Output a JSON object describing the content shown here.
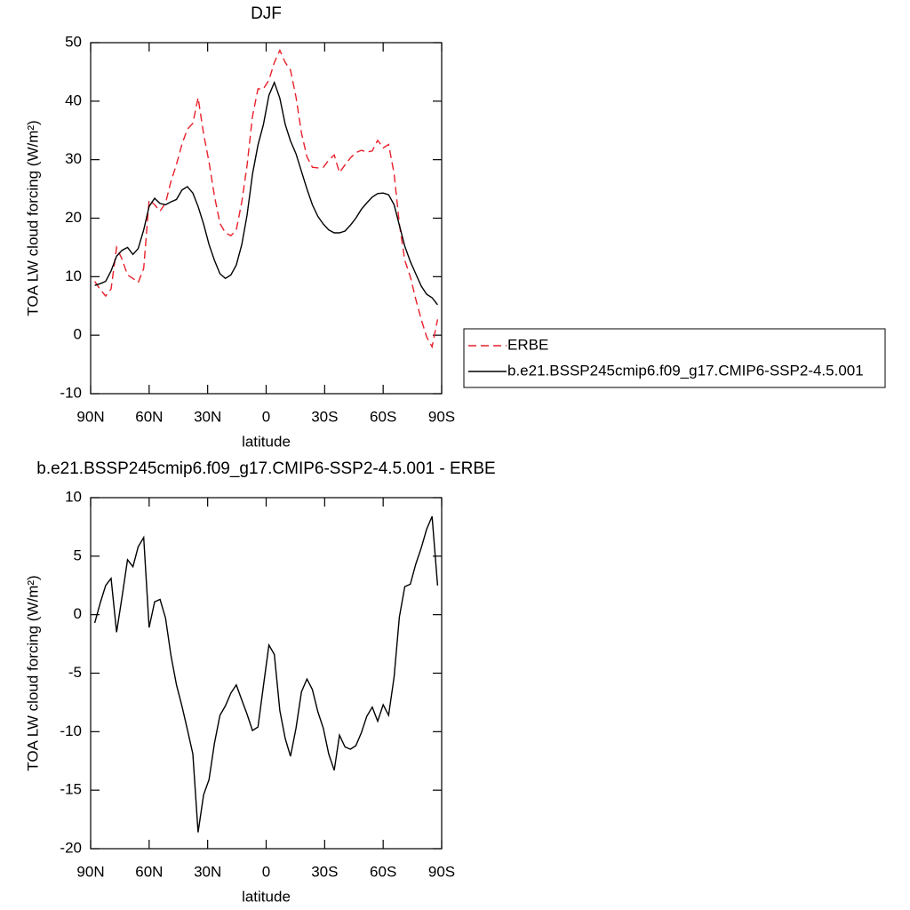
{
  "chart_data": [
    {
      "type": "line",
      "title": "DJF",
      "xlabel": "latitude",
      "ylabel": "TOA LW cloud forcing (W/m²)",
      "x": [
        87.9,
        85.1,
        82.3,
        79.5,
        76.7,
        73.9,
        71.1,
        68.3,
        65.6,
        62.8,
        60.0,
        57.2,
        54.4,
        51.6,
        48.8,
        46.0,
        43.2,
        40.4,
        37.6,
        34.9,
        32.1,
        29.3,
        26.5,
        23.7,
        20.9,
        18.1,
        15.3,
        12.5,
        9.8,
        7.0,
        4.2,
        1.4,
        -1.4,
        -4.2,
        -7.0,
        -9.8,
        -12.5,
        -15.3,
        -18.1,
        -20.9,
        -23.7,
        -26.5,
        -29.3,
        -32.1,
        -34.9,
        -37.6,
        -40.4,
        -43.2,
        -46.0,
        -48.8,
        -51.6,
        -54.4,
        -57.2,
        -60.0,
        -62.8,
        -65.6,
        -68.3,
        -71.1,
        -73.9,
        -76.7,
        -79.5,
        -82.3,
        -85.1,
        -87.9
      ],
      "series": [
        {
          "name": "ERBE",
          "color": "#e8202a",
          "linestyle": "dashed",
          "values": [
            9.2,
            7.8,
            6.7,
            7.9,
            15.0,
            13.0,
            10.3,
            9.7,
            9.0,
            11.4,
            23.1,
            22.3,
            21.2,
            22.6,
            26.3,
            29.2,
            32.6,
            35.2,
            36.2,
            40.6,
            34.4,
            29.6,
            23.8,
            19.1,
            17.5,
            17.0,
            18.0,
            22.8,
            29.0,
            37.4,
            42.1,
            42.1,
            43.6,
            46.6,
            48.7,
            46.6,
            45.3,
            40.7,
            34.6,
            30.5,
            28.7,
            28.6,
            28.7,
            29.9,
            30.8,
            27.8,
            29.1,
            30.3,
            31.2,
            31.6,
            31.3,
            31.5,
            33.3,
            32.0,
            32.6,
            27.6,
            19.0,
            12.8,
            10.0,
            6.2,
            2.7,
            -0.3,
            -2.0,
            2.7
          ]
        },
        {
          "name": "b.e21.BSSP245cmip6.f09_g17.CMIP6-SSP2-4.5.001",
          "color": "#000000",
          "linestyle": "solid",
          "values": [
            8.5,
            8.8,
            9.2,
            11.0,
            13.5,
            14.5,
            15.0,
            13.8,
            14.8,
            18.0,
            22.0,
            23.4,
            22.5,
            22.3,
            22.8,
            23.2,
            24.8,
            25.4,
            24.3,
            22.0,
            19.0,
            15.5,
            12.8,
            10.5,
            9.7,
            10.3,
            12.0,
            15.5,
            20.5,
            27.5,
            32.5,
            36.0,
            41.0,
            43.2,
            40.5,
            36.0,
            33.2,
            31.0,
            28.0,
            25.0,
            22.3,
            20.3,
            19.0,
            18.0,
            17.5,
            17.5,
            17.8,
            18.8,
            20.0,
            21.5,
            22.6,
            23.6,
            24.2,
            24.3,
            24.0,
            22.3,
            18.8,
            15.2,
            12.6,
            10.5,
            8.4,
            7.0,
            6.4,
            5.2
          ]
        }
      ],
      "xlim": [
        90,
        -90
      ],
      "xticks": [
        {
          "value": 90,
          "label": "90N"
        },
        {
          "value": 60,
          "label": "60N"
        },
        {
          "value": 30,
          "label": "30N"
        },
        0,
        {
          "value": -30,
          "label": "30S"
        },
        {
          "value": -60,
          "label": "60S"
        },
        {
          "value": -90,
          "label": "90S"
        }
      ],
      "ylim": [
        -10,
        50
      ],
      "yticks": [
        -10,
        0,
        10,
        20,
        30,
        40,
        50
      ],
      "legend_position": "right"
    },
    {
      "type": "line",
      "title": "b.e21.BSSP245cmip6.f09_g17.CMIP6-SSP2-4.5.001 - ERBE",
      "xlabel": "latitude",
      "ylabel": "TOA LW cloud forcing (W/m²)",
      "x": [
        87.9,
        85.1,
        82.3,
        79.5,
        76.7,
        73.9,
        71.1,
        68.3,
        65.6,
        62.8,
        60.0,
        57.2,
        54.4,
        51.6,
        48.8,
        46.0,
        43.2,
        40.4,
        37.6,
        34.9,
        32.1,
        29.3,
        26.5,
        23.7,
        20.9,
        18.1,
        15.3,
        12.5,
        9.8,
        7.0,
        4.2,
        1.4,
        -1.4,
        -4.2,
        -7.0,
        -9.8,
        -12.5,
        -15.3,
        -18.1,
        -20.9,
        -23.7,
        -26.5,
        -29.3,
        -32.1,
        -34.9,
        -37.6,
        -40.4,
        -43.2,
        -46.0,
        -48.8,
        -51.6,
        -54.4,
        -57.2,
        -60.0,
        -62.8,
        -65.6,
        -68.3,
        -71.1,
        -73.9,
        -76.7,
        -79.5,
        -82.3,
        -85.1,
        -87.9
      ],
      "color": "#000000",
      "values": [
        -0.7,
        1.0,
        2.5,
        3.1,
        -1.5,
        1.5,
        4.7,
        4.1,
        5.8,
        6.6,
        -1.1,
        1.1,
        1.3,
        -0.3,
        -3.5,
        -6,
        -7.8,
        -9.8,
        -11.9,
        -18.6,
        -15.4,
        -14.1,
        -11,
        -8.6,
        -7.8,
        -6.7,
        -6,
        -7.3,
        -8.5,
        -9.9,
        -9.6,
        -6.1,
        -2.6,
        -3.4,
        -8.2,
        -10.6,
        -12.1,
        -9.7,
        -6.6,
        -5.5,
        -6.4,
        -8.3,
        -9.7,
        -11.9,
        -13.3,
        -10.3,
        -11.3,
        -11.5,
        -11.2,
        -10.1,
        -8.7,
        -7.9,
        -9.1,
        -7.7,
        -8.6,
        -5.3,
        -0.2,
        2.4,
        2.6,
        4.3,
        5.7,
        7.3,
        8.4,
        2.5
      ],
      "xlim": [
        90,
        -90
      ],
      "xticks": [
        {
          "value": 90,
          "label": "90N"
        },
        {
          "value": 60,
          "label": "60N"
        },
        {
          "value": 30,
          "label": "30N"
        },
        0,
        {
          "value": -30,
          "label": "30S"
        },
        {
          "value": -60,
          "label": "60S"
        },
        {
          "value": -90,
          "label": "90S"
        }
      ],
      "ylim": [
        -20,
        10
      ],
      "yticks": [
        -20,
        -15,
        -10,
        -5,
        0,
        5,
        10
      ]
    }
  ]
}
